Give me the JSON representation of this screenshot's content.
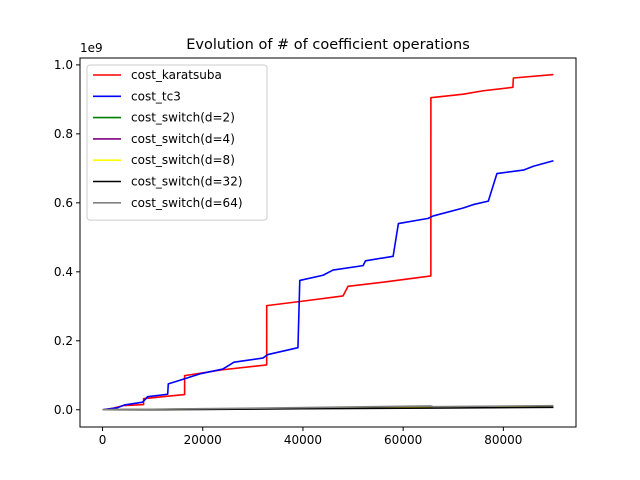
{
  "chart_data": {
    "type": "line",
    "title": "Evolution of # of coefficient operations",
    "xlabel": "",
    "ylabel": "",
    "y_scale_label": "1e9",
    "xlim": [
      -4500,
      94500
    ],
    "ylim": [
      -0.05,
      1.02
    ],
    "x_ticks": [
      0,
      20000,
      40000,
      60000,
      80000
    ],
    "x_tick_labels": [
      "0",
      "20000",
      "40000",
      "60000",
      "80000"
    ],
    "y_ticks": [
      0.0,
      0.2,
      0.4,
      0.6,
      0.8,
      1.0
    ],
    "y_tick_labels": [
      "0.0",
      "0.2",
      "0.4",
      "0.6",
      "0.8",
      "1.0"
    ],
    "grid": false,
    "legend_position": "top-left",
    "series": [
      {
        "name": "cost_karatsuba",
        "color": "#ff0000",
        "x": [
          0,
          2000,
          4096,
          8190,
          8192,
          12000,
          16380,
          16384,
          24000,
          32760,
          32768,
          40000,
          48000,
          49000,
          56000,
          65530,
          65536,
          72000,
          76000,
          81900,
          82000,
          90000
        ],
        "y": [
          0.0,
          0.004,
          0.012,
          0.015,
          0.032,
          0.038,
          0.044,
          0.099,
          0.116,
          0.13,
          0.302,
          0.315,
          0.33,
          0.358,
          0.37,
          0.388,
          0.905,
          0.915,
          0.925,
          0.935,
          0.962,
          0.972
        ]
      },
      {
        "name": "cost_tc3",
        "color": "#0000ff",
        "x": [
          0,
          3000,
          4370,
          8000,
          9000,
          13000,
          13120,
          16000,
          19680,
          24000,
          26240,
          32000,
          33000,
          39000,
          39370,
          44000,
          46000,
          52000,
          52490,
          58000,
          59050,
          65000,
          66000,
          72000,
          74000,
          77000,
          78720,
          84000,
          86000,
          90000
        ],
        "y": [
          0.0,
          0.006,
          0.014,
          0.022,
          0.038,
          0.045,
          0.075,
          0.088,
          0.105,
          0.118,
          0.138,
          0.15,
          0.16,
          0.18,
          0.375,
          0.39,
          0.405,
          0.418,
          0.432,
          0.445,
          0.54,
          0.555,
          0.562,
          0.585,
          0.595,
          0.605,
          0.685,
          0.695,
          0.706,
          0.722
        ]
      },
      {
        "name": "cost_switch(d=2)",
        "color": "#008000",
        "x": [
          0,
          20000,
          40000,
          65536,
          90000
        ],
        "y": [
          0.0,
          0.002,
          0.004,
          0.007,
          0.009
        ]
      },
      {
        "name": "cost_switch(d=4)",
        "color": "#800080",
        "x": [
          0,
          20000,
          40000,
          65536,
          90000
        ],
        "y": [
          0.0,
          0.002,
          0.004,
          0.006,
          0.008
        ]
      },
      {
        "name": "cost_switch(d=8)",
        "color": "#ffff00",
        "x": [
          0,
          20000,
          40000,
          65536,
          90000
        ],
        "y": [
          0.0,
          0.002,
          0.004,
          0.006,
          0.009
        ]
      },
      {
        "name": "cost_switch(d=32)",
        "color": "#000000",
        "x": [
          0,
          20000,
          40000,
          65536,
          90000
        ],
        "y": [
          0.0,
          0.001,
          0.003,
          0.005,
          0.007
        ]
      },
      {
        "name": "cost_switch(d=64)",
        "color": "#808080",
        "x": [
          0,
          20000,
          32768,
          65536,
          66000,
          90000
        ],
        "y": [
          0.0,
          0.003,
          0.005,
          0.011,
          0.009,
          0.012
        ]
      }
    ]
  }
}
